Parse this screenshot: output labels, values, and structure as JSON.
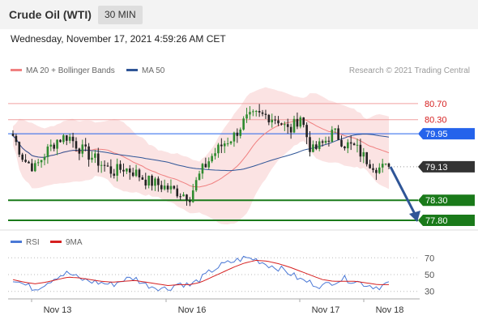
{
  "header": {
    "title": "Crude Oil (WTI)",
    "timeframe": "30 MIN"
  },
  "timestamp": "Wednesday, November 17, 2021 4:59:26 AM CET",
  "legend": {
    "ma20": "MA 20 + Bollinger Bands",
    "ma50": "MA 50",
    "copyright": "Research © 2021 Trading Central"
  },
  "rsi_legend": {
    "rsi": "RSI",
    "ma9": "9MA"
  },
  "colors": {
    "bands": "#fadcdc",
    "ma20": "#f08080",
    "ma50": "#2f5597",
    "up": "#2e8b2e",
    "down": "#222222",
    "support": "#1a7a1a",
    "resistance_line": "#f0a0a0",
    "pivot": "#2563eb",
    "current": "#333333",
    "arrow": "#2f5597",
    "rsi": "#4a78d6",
    "rsi_ma": "#d62020"
  },
  "chart_data": {
    "type": "candlestick",
    "y_range": [
      77.6,
      81.3
    ],
    "x_labels": [
      "Nov 13",
      "Nov 16",
      "Nov 17",
      "Nov 18"
    ],
    "levels": [
      {
        "value": 80.7,
        "label": "80.70",
        "kind": "resistance"
      },
      {
        "value": 80.3,
        "label": "80.30",
        "kind": "resistance"
      },
      {
        "value": 79.95,
        "label": "79.95",
        "kind": "pivot"
      },
      {
        "value": 79.13,
        "label": "79.13",
        "kind": "current"
      },
      {
        "value": 78.3,
        "label": "78.30",
        "kind": "support"
      },
      {
        "value": 77.8,
        "label": "77.80",
        "kind": "support"
      }
    ],
    "close_path": [
      79.9,
      79.3,
      79.1,
      79.5,
      79.8,
      79.9,
      79.6,
      79.4,
      79.2,
      79.0,
      79.1,
      79.0,
      78.8,
      78.7,
      78.6,
      78.5,
      78.4,
      79.0,
      79.4,
      79.7,
      79.9,
      80.3,
      80.4,
      80.4,
      80.3,
      80.0,
      80.4,
      79.5,
      79.7,
      80.0,
      79.7,
      79.6,
      79.3,
      79.1,
      79.1
    ],
    "forecast": {
      "from": 79.13,
      "to": 77.8
    },
    "rsi": {
      "ticks": [
        70,
        50,
        30
      ],
      "range": [
        22,
        78
      ],
      "rsi_path": [
        45,
        38,
        33,
        40,
        48,
        52,
        45,
        42,
        40,
        38,
        44,
        46,
        38,
        35,
        33,
        40,
        37,
        45,
        55,
        62,
        66,
        70,
        68,
        62,
        58,
        52,
        44,
        40,
        36,
        42,
        45,
        42,
        38,
        35,
        40
      ],
      "ma_path": [
        44,
        41,
        39,
        41,
        44,
        47,
        46,
        44,
        42,
        41,
        42,
        43,
        41,
        39,
        37,
        38,
        38,
        41,
        47,
        53,
        59,
        64,
        67,
        66,
        63,
        59,
        54,
        49,
        44,
        42,
        42,
        42,
        40,
        38,
        38
      ]
    }
  }
}
